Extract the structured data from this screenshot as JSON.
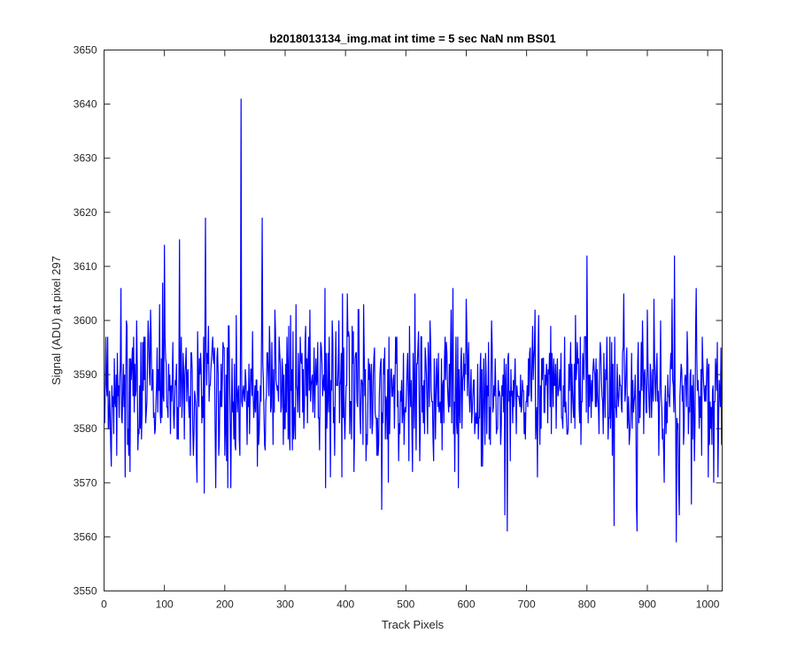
{
  "chart_data": {
    "type": "line",
    "title": "b2018013134_img.mat int time = 5 sec  NaN nm BS01",
    "xlabel": "Track Pixels",
    "ylabel": "Signal (ADU) at pixel 297",
    "xlim": [
      0,
      1024
    ],
    "ylim": [
      3550,
      3650
    ],
    "xticks": [
      0,
      100,
      200,
      300,
      400,
      500,
      600,
      700,
      800,
      900,
      1000
    ],
    "yticks": [
      3550,
      3560,
      3570,
      3580,
      3590,
      3600,
      3610,
      3620,
      3630,
      3640,
      3650
    ],
    "grid": false,
    "legend": "none",
    "series_color": "#0000ff",
    "axis_color": "#262626",
    "series": [
      {
        "x_start": 1,
        "x_step": 1,
        "mean": 3587,
        "std": 7,
        "noise_seed": 2018013134,
        "count": 1024,
        "peaks": [
          {
            "x": 3,
            "y": 3597
          },
          {
            "x": 12,
            "y": 3573
          },
          {
            "x": 28,
            "y": 3606
          },
          {
            "x": 35,
            "y": 3571
          },
          {
            "x": 97,
            "y": 3607
          },
          {
            "x": 100,
            "y": 3614
          },
          {
            "x": 125,
            "y": 3615
          },
          {
            "x": 166,
            "y": 3568
          },
          {
            "x": 168,
            "y": 3619
          },
          {
            "x": 205,
            "y": 3569
          },
          {
            "x": 210,
            "y": 3569
          },
          {
            "x": 227,
            "y": 3641
          },
          {
            "x": 262,
            "y": 3619
          },
          {
            "x": 375,
            "y": 3571
          },
          {
            "x": 460,
            "y": 3565
          },
          {
            "x": 515,
            "y": 3605
          },
          {
            "x": 600,
            "y": 3604
          },
          {
            "x": 664,
            "y": 3564
          },
          {
            "x": 668,
            "y": 3561
          },
          {
            "x": 720,
            "y": 3601
          },
          {
            "x": 800,
            "y": 3612
          },
          {
            "x": 845,
            "y": 3562
          },
          {
            "x": 883,
            "y": 3561
          },
          {
            "x": 945,
            "y": 3612
          },
          {
            "x": 948,
            "y": 3559
          },
          {
            "x": 953,
            "y": 3564
          },
          {
            "x": 1010,
            "y": 3570
          }
        ]
      }
    ]
  }
}
